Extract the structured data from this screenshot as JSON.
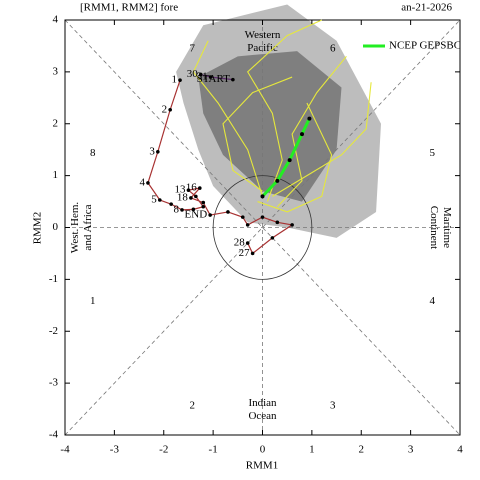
{
  "chart_data": {
    "type": "phase",
    "title_fragments": [
      "[RMM1, RMM2] fore",
      "an-21-2026"
    ],
    "x_label": "RMM1",
    "y_label": "RMM2",
    "xlim": [
      -4,
      4
    ],
    "ylim": [
      -4,
      4
    ],
    "xticks": [
      -4,
      -3,
      -2,
      -1,
      0,
      1,
      2,
      3,
      4
    ],
    "yticks": [
      -4,
      -3,
      -2,
      -1,
      0,
      1,
      2,
      3,
      4
    ],
    "phases": [
      "1",
      "2",
      "3",
      "4",
      "5",
      "6",
      "7",
      "8"
    ],
    "regions": [
      [
        "West. Hem.",
        "and Africa"
      ],
      [
        "Western",
        "Pacific"
      ],
      [
        "Maritime",
        "Continent"
      ],
      [
        "Indian",
        "Ocean"
      ]
    ],
    "spread": [
      {
        "color": "#bdbdbd",
        "x": [
          -1.75,
          -1.2,
          0.5,
          1.5,
          2.4,
          2.3,
          1.5,
          0.5,
          -0.3,
          -1.0,
          -1.3,
          -1.6
        ],
        "y": [
          3.0,
          3.9,
          4.3,
          3.6,
          2.0,
          0.3,
          -0.2,
          0.0,
          0.1,
          0.8,
          1.5,
          2.4
        ]
      },
      {
        "color": "#7f7f7f",
        "x": [
          -1.3,
          -0.5,
          0.7,
          1.6,
          1.5,
          0.8,
          0.0,
          -0.8,
          -1.2
        ],
        "y": [
          2.9,
          3.3,
          3.4,
          2.7,
          1.5,
          0.5,
          0.7,
          1.4,
          2.2
        ]
      }
    ],
    "members": [
      {
        "color": "#e6e83c",
        "x": [
          0.0,
          -0.3,
          -0.9,
          -1.4,
          -1.1
        ],
        "y": [
          0.6,
          1.5,
          2.4,
          3.0,
          3.6
        ]
      },
      {
        "color": "#e6e83c",
        "x": [
          0.1,
          0.4,
          0.2,
          -0.3,
          0.5,
          1.2
        ],
        "y": [
          0.5,
          1.3,
          2.2,
          3.0,
          3.7,
          4.0
        ]
      },
      {
        "color": "#e6e83c",
        "x": [
          0.2,
          0.9,
          1.6,
          2.1,
          2.2
        ],
        "y": [
          0.6,
          1.0,
          1.4,
          1.9,
          2.8
        ]
      },
      {
        "color": "#e6e83c",
        "x": [
          0.0,
          -0.6,
          -0.8,
          -0.2,
          0.6
        ],
        "y": [
          0.7,
          1.1,
          2.0,
          2.6,
          2.9
        ]
      },
      {
        "color": "#e6e83c",
        "x": [
          0.3,
          0.8,
          0.6,
          1.1,
          1.7
        ],
        "y": [
          0.4,
          0.9,
          1.8,
          2.6,
          3.3
        ]
      },
      {
        "color": "#e6e83c",
        "x": [
          -0.1,
          0.5,
          1.2,
          1.4,
          0.9
        ],
        "y": [
          0.5,
          0.3,
          0.6,
          1.4,
          2.4
        ]
      }
    ],
    "series": [
      {
        "name": "NCEP GEPSBC",
        "color": "#22ee22",
        "x": [
          0.0,
          0.3,
          0.55,
          0.8,
          0.95
        ],
        "y": [
          0.6,
          0.9,
          1.3,
          1.8,
          2.1
        ]
      }
    ],
    "tracks": [
      {
        "color": "#a83232",
        "x": [
          -1.67,
          -1.87,
          -2.12,
          -2.32,
          -2.08,
          -1.85,
          -1.63,
          -1.4,
          -1.2,
          -1.35,
          -1.5,
          -1.27,
          -1.45,
          -1.2,
          -1.06,
          -0.7,
          -0.4,
          -0.3,
          0.0,
          0.3,
          0.6,
          0.2,
          -0.2,
          -0.3
        ],
        "y": [
          2.84,
          2.27,
          1.46,
          0.86,
          0.53,
          0.45,
          0.34,
          0.35,
          0.4,
          0.6,
          0.72,
          0.76,
          0.57,
          0.48,
          0.24,
          0.3,
          0.2,
          0.05,
          0.2,
          0.1,
          0.05,
          -0.2,
          -0.5,
          -0.3
        ],
        "labels": [
          "1",
          "2",
          "3",
          "4",
          "5",
          null,
          "8",
          null,
          null,
          null,
          "13",
          "16",
          "18",
          null,
          "END",
          null,
          null,
          null,
          null,
          null,
          null,
          null,
          "27",
          "28"
        ]
      },
      {
        "color": "#5a2a6a",
        "x": [
          -1.25,
          -1.05,
          -0.6
        ],
        "y": [
          2.95,
          2.9,
          2.85
        ],
        "labels": [
          "30",
          "31",
          "START"
        ]
      }
    ]
  }
}
